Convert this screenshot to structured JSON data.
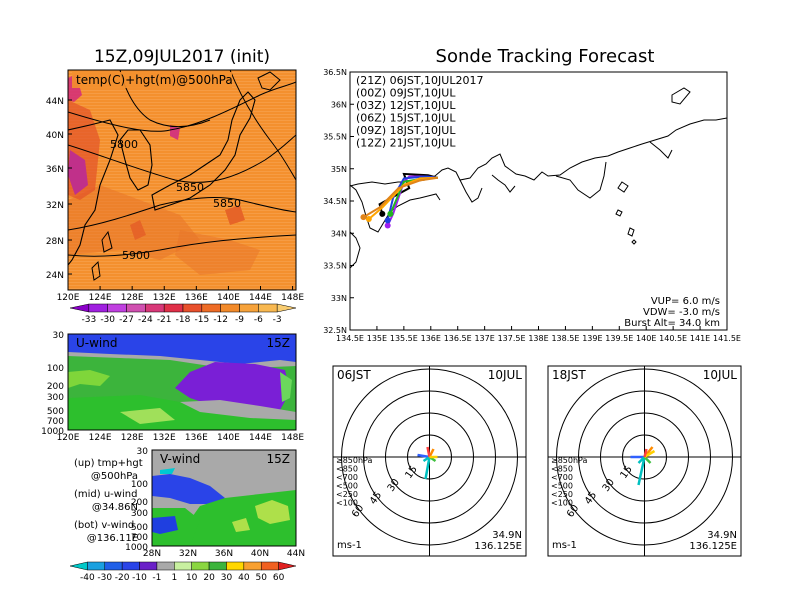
{
  "left_panel": {
    "title": "15Z,09JUL2017 (init)",
    "map_label": "temp(C)+hgt(m)@500hPa",
    "lat_ticks": [
      "44N",
      "40N",
      "36N",
      "32N",
      "28N",
      "24N"
    ],
    "lon_ticks": [
      "120E",
      "124E",
      "128E",
      "132E",
      "136E",
      "140E",
      "144E",
      "148E"
    ],
    "contour_labels": [
      "5800",
      "5850",
      "5850",
      "5900"
    ],
    "colorbar_ticks": [
      "-33",
      "-30",
      "-27",
      "-24",
      "-21",
      "-18",
      "-15",
      "-12",
      "-9",
      "-6",
      "-3"
    ],
    "uwind": {
      "label": "U-wind",
      "time": "15Z",
      "p_ticks": [
        "30",
        "100",
        "200",
        "300",
        "500",
        "700",
        "1000"
      ],
      "lon_ticks": [
        "120E",
        "124E",
        "128E",
        "132E",
        "136E",
        "140E",
        "144E",
        "148E"
      ]
    },
    "vwind": {
      "label": "V-wind",
      "time": "15Z",
      "p_ticks": [
        "30",
        "100",
        "200",
        "300",
        "500",
        "700",
        "1000"
      ],
      "lat_ticks": [
        "28N",
        "32N",
        "36N",
        "40N",
        "44N"
      ]
    },
    "legend_notes": [
      "(up) tmp+hgt",
      "@500hPa",
      "(mid) u-wind",
      "@34.86N",
      "(bot) v-wind",
      "@136.11E"
    ],
    "wind_colorbar_ticks": [
      "-40",
      "-30",
      "-20",
      "-10",
      "-1",
      "1",
      "10",
      "20",
      "30",
      "40",
      "50",
      "60"
    ]
  },
  "right_panel": {
    "title": "Sonde Tracking Forecast",
    "legend": [
      {
        "label": "(21Z) 06JST,10JUL2017",
        "color": "#000000"
      },
      {
        "label": "(00Z) 09JST,10JUL",
        "color": "#a020f0"
      },
      {
        "label": "(03Z) 12JST,10JUL",
        "color": "#1f3fe0"
      },
      {
        "label": "(06Z) 15JST,10JUL",
        "color": "#22b422"
      },
      {
        "label": "(09Z) 18JST,10JUL",
        "color": "#ffa500"
      },
      {
        "label": "(12Z) 21JST,10JUL",
        "color": "#e0841a"
      }
    ],
    "lat_ticks": [
      "36.5N",
      "36N",
      "35.5N",
      "35N",
      "34.5N",
      "34N",
      "33.5N",
      "33N",
      "32.5N"
    ],
    "lon_ticks": [
      "134.5E",
      "135E",
      "135.5E",
      "136E",
      "136.5E",
      "137E",
      "137.5E",
      "138E",
      "138.5E",
      "139E",
      "139.5E",
      "140E",
      "140.5E",
      "141E",
      "141.5E"
    ],
    "params": [
      "VUP= 6.0 m/s",
      "VDW= -3.0 m/s",
      "Burst Alt= 34.0 km"
    ],
    "params_values": {
      "vup_ms": 6.0,
      "vdw_ms": -3.0,
      "burst_alt_km": 34.0
    }
  },
  "hodographs": [
    {
      "time": "06JST",
      "date": "10JUL",
      "lat": "34.9N",
      "lon": "136.125E",
      "unit": "ms-1"
    },
    {
      "time": "18JST",
      "date": "10JUL",
      "lat": "34.9N",
      "lon": "136.125E",
      "unit": "ms-1"
    }
  ],
  "hodo_legend": [
    {
      "label": "≥850hPa",
      "color": "#ff4040"
    },
    {
      "label": "<850",
      "color": "#ff8c00"
    },
    {
      "label": "<700",
      "color": "#ffd000"
    },
    {
      "label": "<500",
      "color": "#40c040"
    },
    {
      "label": "<250",
      "color": "#00c0c0"
    },
    {
      "label": "<100",
      "color": "#3060ff"
    }
  ],
  "hodo_ring_labels": [
    "15",
    "30",
    "45",
    "60"
  ],
  "chart_data": [
    {
      "type": "heatmap",
      "title": "15Z,09JUL2017 (init)",
      "field": "temp(C)+hgt(m)@500hPa",
      "x_range_deg_e": [
        120,
        148
      ],
      "y_range_deg_n": [
        22,
        48
      ],
      "colorbar": [
        -33,
        -30,
        -27,
        -24,
        -21,
        -18,
        -15,
        -12,
        -9,
        -6,
        -3
      ],
      "contours_m": [
        5800,
        5850,
        5900
      ]
    },
    {
      "type": "heatmap",
      "title": "U-wind 15Z",
      "x_range_deg_e": [
        120,
        148
      ],
      "y_pressure_hpa": [
        1000,
        30
      ],
      "colorbar": [
        -40,
        -30,
        -20,
        -10,
        -1,
        1,
        10,
        20,
        30,
        40,
        50,
        60
      ]
    },
    {
      "type": "heatmap",
      "title": "V-wind 15Z",
      "x_range_deg_n": [
        28,
        44
      ],
      "y_pressure_hpa": [
        1000,
        30
      ],
      "colorbar": [
        -40,
        -30,
        -20,
        -10,
        -1,
        1,
        10,
        20,
        30,
        40,
        50,
        60
      ]
    },
    {
      "type": "line",
      "title": "Sonde Tracking Forecast",
      "xlim": [
        134.5,
        141.5
      ],
      "ylim": [
        32.5,
        36.5
      ],
      "series": [
        {
          "name": "(21Z) 06JST,10JUL2017",
          "points": [
            [
              136.13,
              34.86
            ],
            [
              135.95,
              34.9
            ],
            [
              135.5,
              34.92
            ],
            [
              135.6,
              34.7
            ],
            [
              135.05,
              34.45
            ],
            [
              135.1,
              34.3
            ]
          ]
        },
        {
          "name": "(00Z) 09JST,10JUL",
          "points": [
            [
              136.13,
              34.86
            ],
            [
              135.9,
              34.88
            ],
            [
              135.6,
              34.88
            ],
            [
              135.5,
              34.8
            ],
            [
              135.3,
              34.3
            ],
            [
              135.2,
              34.12
            ]
          ]
        },
        {
          "name": "(03Z) 12JST,10JUL",
          "points": [
            [
              136.13,
              34.86
            ],
            [
              135.9,
              34.88
            ],
            [
              135.5,
              34.85
            ],
            [
              135.3,
              34.55
            ],
            [
              135.2,
              34.2
            ]
          ]
        },
        {
          "name": "(06Z) 15JST,10JUL",
          "points": [
            [
              136.13,
              34.86
            ],
            [
              135.9,
              34.85
            ],
            [
              135.5,
              34.8
            ],
            [
              135.35,
              34.5
            ],
            [
              135.25,
              34.3
            ]
          ]
        },
        {
          "name": "(09Z) 18JST,10JUL",
          "points": [
            [
              136.13,
              34.86
            ],
            [
              135.8,
              34.85
            ],
            [
              135.5,
              34.75
            ],
            [
              135.1,
              34.4
            ],
            [
              134.85,
              34.22
            ]
          ]
        },
        {
          "name": "(12Z) 21JST,10JUL",
          "points": [
            [
              136.13,
              34.86
            ],
            [
              135.8,
              34.82
            ],
            [
              135.4,
              34.7
            ],
            [
              135.05,
              34.4
            ],
            [
              134.75,
              34.25
            ]
          ]
        }
      ]
    }
  ]
}
